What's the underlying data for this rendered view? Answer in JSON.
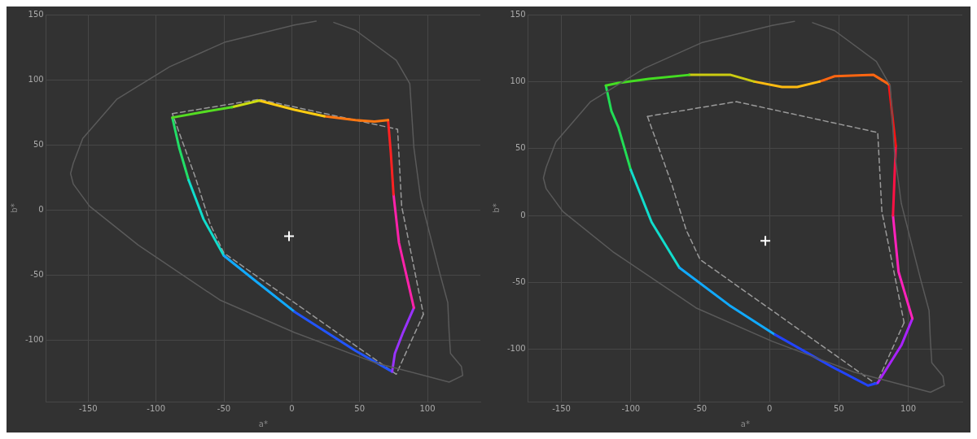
{
  "chart_data": [
    {
      "type": "line",
      "xlabel": "a*",
      "ylabel": "b*",
      "xlim": [
        -181,
        139
      ],
      "ylim": [
        -147,
        150
      ],
      "xticks": [
        -150,
        -100,
        -50,
        0,
        50,
        100
      ],
      "yticks": [
        -100,
        -50,
        0,
        50,
        100,
        150
      ],
      "grid": true,
      "legend": false,
      "marker": "none",
      "series": [
        {
          "color": "#5a5a5a",
          "line_style": "solid",
          "x": [
            18,
            2,
            -49,
            -90,
            -129,
            -154,
            -161,
            -163,
            -161,
            -149,
            -113,
            -53,
            2,
            61,
            116,
            126,
            125,
            117,
            116,
            115,
            109,
            95,
            90,
            87,
            77,
            47,
            31
          ],
          "values": [
            145,
            142,
            129,
            110,
            85,
            55,
            36,
            28,
            20,
            3,
            -27,
            -69,
            -94,
            -117,
            -132,
            -127,
            -120,
            -110,
            -94,
            -71,
            -48,
            9,
            48,
            97,
            115,
            138,
            144
          ]
        },
        {
          "color": "#55dd22",
          "line_style": "solid",
          "x": [
            -88,
            -67,
            -44
          ],
          "values": [
            71,
            75,
            79
          ]
        },
        {
          "color": "#ccdd11",
          "line_style": "solid",
          "x": [
            -44,
            -24
          ],
          "values": [
            79,
            84
          ]
        },
        {
          "color": "#ffcc11",
          "line_style": "solid",
          "x": [
            -24,
            2,
            24
          ],
          "values": [
            84,
            77,
            72
          ]
        },
        {
          "color": "#ff7711",
          "line_style": "solid",
          "x": [
            24,
            47,
            61,
            71
          ],
          "values": [
            72,
            69,
            68,
            69
          ]
        },
        {
          "color": "#ff2222",
          "line_style": "solid",
          "x": [
            71,
            73,
            75
          ],
          "values": [
            69,
            44,
            12
          ]
        },
        {
          "color": "#ff22aa",
          "line_style": "solid",
          "x": [
            75,
            79,
            90
          ],
          "values": [
            12,
            -25,
            -75
          ]
        },
        {
          "color": "#9933ff",
          "line_style": "solid",
          "x": [
            90,
            82,
            76,
            74
          ],
          "values": [
            -75,
            -94,
            -110,
            -124
          ]
        },
        {
          "color": "#2255ff",
          "line_style": "solid",
          "x": [
            74,
            47,
            2
          ],
          "values": [
            -124,
            -108,
            -78
          ]
        },
        {
          "color": "#11aaff",
          "line_style": "solid",
          "x": [
            2,
            -26,
            -50
          ],
          "values": [
            -78,
            -55,
            -35
          ]
        },
        {
          "color": "#11ddcc",
          "line_style": "solid",
          "x": [
            -50,
            -65,
            -76
          ],
          "values": [
            -35,
            -7,
            23
          ]
        },
        {
          "color": "#22dd66",
          "line_style": "solid",
          "x": [
            -76,
            -83,
            -88
          ],
          "values": [
            23,
            48,
            71
          ]
        },
        {
          "color": "#9a9a9a",
          "line_style": "dashed",
          "x": [
            -88,
            -24,
            78,
            81,
            97
          ],
          "values": [
            74,
            85,
            62,
            3,
            -80
          ]
        },
        {
          "color": "#9a9a9a",
          "line_style": "dashed",
          "x": [
            97,
            77,
            -50,
            -60,
            -71,
            -88
          ],
          "values": [
            -80,
            -126,
            -33,
            -11,
            25,
            74
          ]
        },
        {
          "type": "scatter",
          "color": "#ffffff",
          "marker": "cross",
          "x": [
            -2
          ],
          "values": [
            -20
          ]
        }
      ]
    },
    {
      "type": "line",
      "xlabel": "a*",
      "ylabel": "b*",
      "xlim": [
        -174,
        139
      ],
      "ylim": [
        -139,
        150
      ],
      "xticks": [
        -150,
        -100,
        -50,
        0,
        50,
        100
      ],
      "yticks": [
        -100,
        -50,
        0,
        50,
        100,
        150
      ],
      "grid": true,
      "legend": false,
      "marker": "none",
      "series": [
        {
          "color": "#5a5a5a",
          "line_style": "solid",
          "x": [
            18,
            2,
            -49,
            -90,
            -129,
            -154,
            -161,
            -163,
            -161,
            -149,
            -113,
            -53,
            2,
            61,
            116,
            126,
            125,
            117,
            116,
            115,
            109,
            95,
            90,
            87,
            77,
            47,
            31
          ],
          "values": [
            145,
            142,
            129,
            110,
            85,
            55,
            36,
            28,
            20,
            3,
            -27,
            -69,
            -94,
            -117,
            -132,
            -127,
            -120,
            -110,
            -94,
            -71,
            -48,
            9,
            48,
            97,
            115,
            138,
            144
          ]
        },
        {
          "color": "#44dd22",
          "line_style": "solid",
          "x": [
            -118,
            -109,
            -87,
            -58
          ],
          "values": [
            97,
            99,
            102,
            105
          ]
        },
        {
          "color": "#cccc11",
          "line_style": "solid",
          "x": [
            -58,
            -28,
            -11
          ],
          "values": [
            105,
            105,
            100
          ]
        },
        {
          "color": "#ffbb11",
          "line_style": "solid",
          "x": [
            -11,
            9,
            20,
            36
          ],
          "values": [
            100,
            96,
            96,
            100
          ]
        },
        {
          "color": "#ff6611",
          "line_style": "solid",
          "x": [
            36,
            47,
            75,
            86
          ],
          "values": [
            100,
            104,
            105,
            98
          ]
        },
        {
          "color": "#ff1111",
          "line_style": "solid",
          "x": [
            86,
            91
          ],
          "values": [
            98,
            52
          ]
        },
        {
          "color": "#ff1144",
          "line_style": "solid",
          "x": [
            91,
            89
          ],
          "values": [
            52,
            0
          ]
        },
        {
          "color": "#ff22bb",
          "line_style": "solid",
          "x": [
            89,
            93,
            103
          ],
          "values": [
            0,
            -42,
            -77
          ]
        },
        {
          "color": "#aa22ff",
          "line_style": "solid",
          "x": [
            103,
            95,
            78
          ],
          "values": [
            -77,
            -97,
            -125
          ]
        },
        {
          "color": "#2244ff",
          "line_style": "solid",
          "x": [
            78,
            71,
            45,
            4
          ],
          "values": [
            -125,
            -127,
            -113,
            -89
          ]
        },
        {
          "color": "#11aaff",
          "line_style": "solid",
          "x": [
            4,
            -29,
            -65
          ],
          "values": [
            -89,
            -67,
            -39
          ]
        },
        {
          "color": "#11ddcc",
          "line_style": "solid",
          "x": [
            -65,
            -85,
            -100
          ],
          "values": [
            -39,
            -5,
            34
          ]
        },
        {
          "color": "#22dd55",
          "line_style": "solid",
          "x": [
            -100,
            -109,
            -114,
            -118
          ],
          "values": [
            34,
            66,
            78,
            97
          ]
        },
        {
          "color": "#9a9a9a",
          "line_style": "dashed",
          "x": [
            -88,
            -24,
            78,
            81,
            97
          ],
          "values": [
            74,
            85,
            62,
            3,
            -80
          ]
        },
        {
          "color": "#9a9a9a",
          "line_style": "dashed",
          "x": [
            97,
            77,
            -50,
            -60,
            -71,
            -88
          ],
          "values": [
            -80,
            -126,
            -33,
            -11,
            25,
            74
          ]
        },
        {
          "type": "scatter",
          "color": "#ffffff",
          "marker": "cross",
          "x": [
            -3
          ],
          "values": [
            -19
          ]
        }
      ]
    }
  ]
}
